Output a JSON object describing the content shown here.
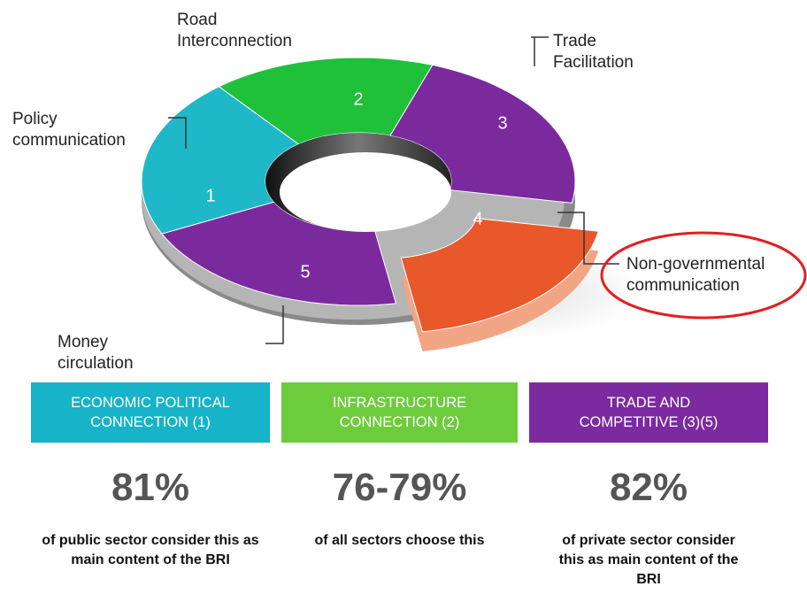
{
  "segments": [
    {
      "number": "1",
      "name": "Policy communication"
    },
    {
      "number": "2",
      "name": "Road Interconnection"
    },
    {
      "number": "3",
      "name": "Trade Facilitation"
    },
    {
      "number": "4",
      "name": "Non-governmental communication"
    },
    {
      "number": "5",
      "name": "Money circulation"
    }
  ],
  "boxes": [
    {
      "title": "ECONOMIC POLITICAL CONNECTION (1)",
      "stat": "81%",
      "description": "of public sector consider this as main content of the BRI"
    },
    {
      "title": "INFRASTRUCTURE CONNECTION (2)",
      "stat": "76-79%",
      "description": "of all sectors choose this"
    },
    {
      "title": "TRADE AND COMPETITIVE (3)(5)",
      "stat": "82%",
      "description": "of private sector consider this as main content of the BRI"
    }
  ]
}
